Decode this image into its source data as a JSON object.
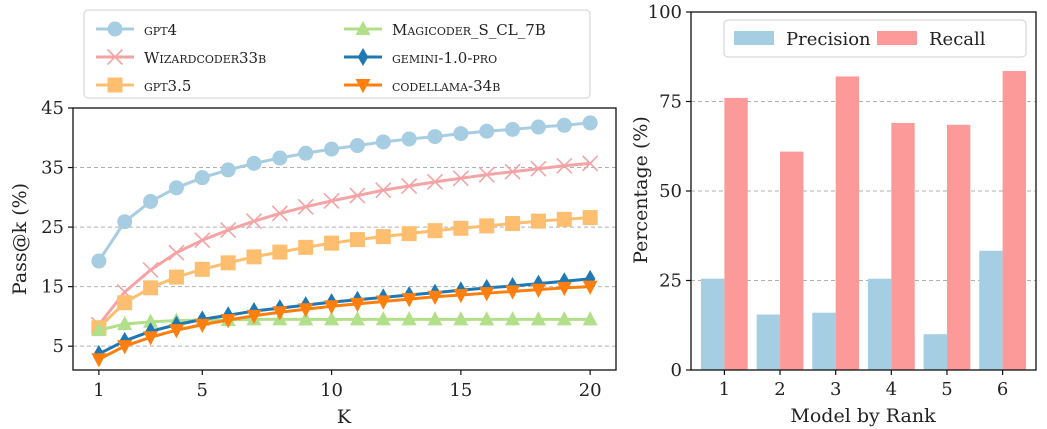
{
  "chart_data": [
    {
      "type": "line",
      "xlabel": "K",
      "ylabel": "Pass@k (%)",
      "xlim": [
        0,
        21
      ],
      "ylim": [
        1,
        45
      ],
      "x": [
        1,
        2,
        3,
        4,
        5,
        6,
        7,
        8,
        9,
        10,
        11,
        12,
        13,
        14,
        15,
        16,
        17,
        18,
        19,
        20
      ],
      "xticks": [
        1,
        5,
        10,
        15,
        20
      ],
      "yticks": [
        5,
        15,
        25,
        35,
        45
      ],
      "grid": "y",
      "legend_position": "top (above plot)",
      "series": [
        {
          "name": "gpt4",
          "color": "#a6cde2",
          "marker": "circle",
          "values": [
            19.3,
            25.9,
            29.3,
            31.6,
            33.3,
            34.6,
            35.7,
            36.6,
            37.4,
            38.1,
            38.7,
            39.3,
            39.8,
            40.2,
            40.7,
            41.1,
            41.4,
            41.8,
            42.1,
            42.5
          ]
        },
        {
          "name": "Wizardcoder33b",
          "color": "#f5a3a5",
          "marker": "x",
          "values": [
            8.6,
            14.1,
            17.8,
            20.7,
            22.8,
            24.5,
            26.0,
            27.3,
            28.4,
            29.4,
            30.3,
            31.2,
            31.9,
            32.6,
            33.2,
            33.8,
            34.3,
            34.8,
            35.3,
            35.7
          ]
        },
        {
          "name": "gpt3.5",
          "color": "#fdbf6f",
          "marker": "square",
          "values": [
            8.1,
            12.3,
            14.8,
            16.6,
            17.9,
            19.0,
            20.0,
            20.8,
            21.6,
            22.3,
            22.9,
            23.4,
            23.9,
            24.4,
            24.8,
            25.2,
            25.6,
            26.0,
            26.3,
            26.6
          ]
        },
        {
          "name": "Magicoder_S_CL_7B",
          "color": "#b2df8a",
          "marker": "triangle-up",
          "values": [
            7.7,
            8.7,
            9.1,
            9.3,
            9.4,
            9.4,
            9.5,
            9.5,
            9.5,
            9.5,
            9.5,
            9.5,
            9.5,
            9.5,
            9.5,
            9.5,
            9.5,
            9.5,
            9.5,
            9.5
          ]
        },
        {
          "name": "gemini-1.0-pro",
          "color": "#1f78b4",
          "marker": "diamond",
          "values": [
            3.7,
            5.9,
            7.5,
            8.6,
            9.5,
            10.2,
            10.9,
            11.4,
            11.9,
            12.4,
            12.8,
            13.2,
            13.6,
            14.0,
            14.4,
            14.8,
            15.1,
            15.5,
            15.9,
            16.3
          ]
        },
        {
          "name": "codellama-34b",
          "color": "#ff7f0e",
          "marker": "triangle-down",
          "values": [
            2.8,
            5.0,
            6.5,
            7.7,
            8.6,
            9.4,
            10.1,
            10.7,
            11.2,
            11.7,
            12.1,
            12.5,
            12.9,
            13.3,
            13.6,
            13.9,
            14.2,
            14.5,
            14.8,
            15.0
          ]
        }
      ]
    },
    {
      "type": "bar",
      "xlabel": "Model by Rank",
      "ylabel": "Percentage (%)",
      "categories": [
        "1",
        "2",
        "3",
        "4",
        "5",
        "6"
      ],
      "ylim": [
        0,
        100
      ],
      "yticks": [
        0,
        25,
        50,
        75,
        100
      ],
      "grid": "y",
      "legend_position": "top",
      "series": [
        {
          "name": "Precision",
          "color": "#a6cee3",
          "values": [
            25.5,
            15.5,
            16.0,
            25.5,
            10.0,
            33.3
          ]
        },
        {
          "name": "Recall",
          "color": "#fb9a99",
          "values": [
            76.0,
            61.0,
            82.0,
            69.0,
            68.5,
            83.5
          ]
        }
      ]
    }
  ]
}
